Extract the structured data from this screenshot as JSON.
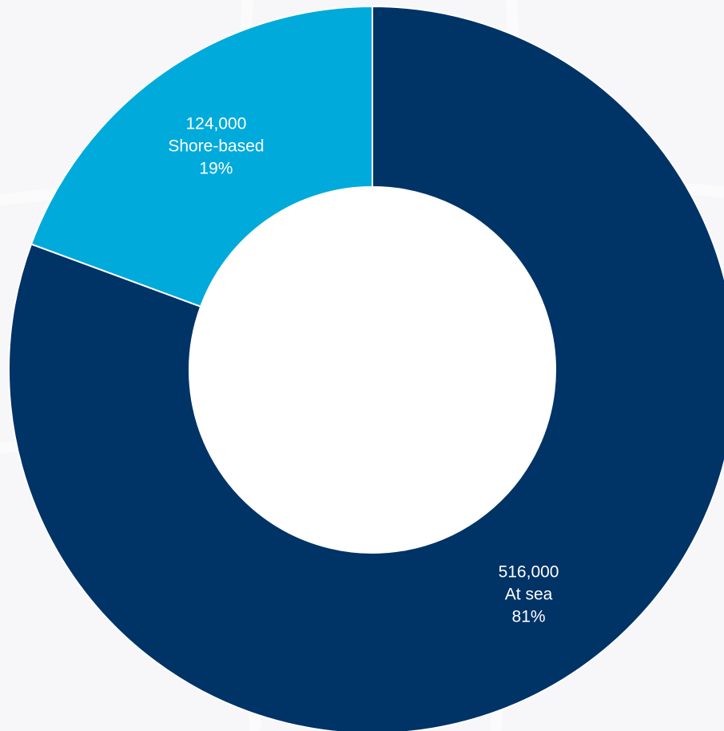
{
  "chart_data": {
    "type": "pie",
    "donut": true,
    "title": "",
    "slices": [
      {
        "name": "At sea",
        "value": 516000,
        "value_label": "516,000",
        "percent_label": "81%",
        "color": "#003366"
      },
      {
        "name": "Shore-based",
        "value": 124000,
        "value_label": "124,000",
        "percent_label": "19%",
        "color": "#00aadb"
      }
    ],
    "legend": "none",
    "start_angle": "12 o'clock",
    "direction": "clockwise"
  },
  "colors": {
    "background": "#f7f7f9",
    "separator": "#ffffff",
    "label_text": "#ffffff"
  }
}
